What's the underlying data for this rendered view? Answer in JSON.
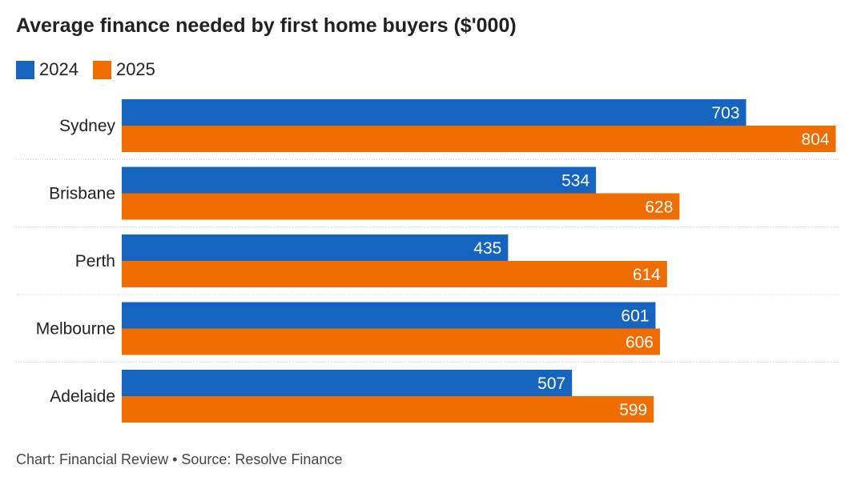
{
  "title": "Average finance needed by first home buyers ($'000)",
  "footer": "Chart: Financial Review • Source: Resolve Finance",
  "colors": {
    "series_2024": "#1565c0",
    "series_2025": "#ef6c00",
    "divider": "#c8c8c8"
  },
  "chart_data": {
    "type": "bar",
    "orientation": "horizontal",
    "title": "Average finance needed by first home buyers ($'000)",
    "categories": [
      "Sydney",
      "Brisbane",
      "Perth",
      "Melbourne",
      "Adelaide"
    ],
    "series": [
      {
        "name": "2024",
        "values": [
          703,
          534,
          435,
          601,
          507
        ],
        "color": "#1565c0"
      },
      {
        "name": "2025",
        "values": [
          804,
          628,
          614,
          606,
          599
        ],
        "color": "#ef6c00"
      }
    ],
    "xlim": [
      0,
      808
    ],
    "legend": "top-left",
    "grid": false,
    "data_labels": true
  }
}
